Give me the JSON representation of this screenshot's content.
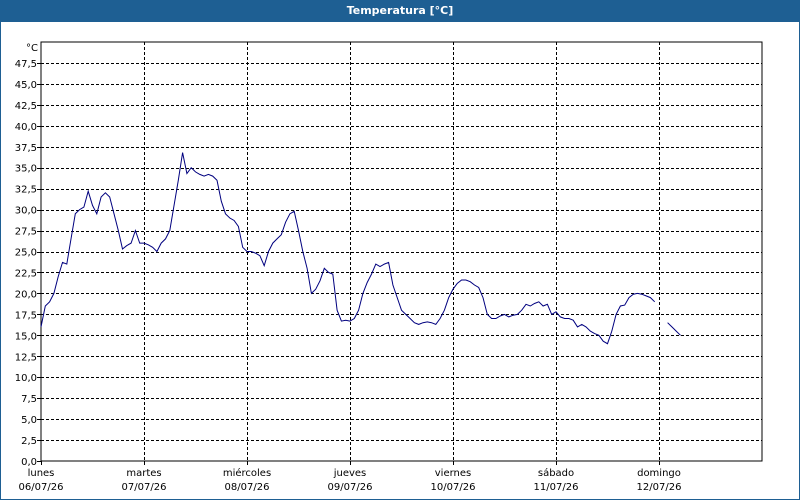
{
  "window": {
    "title": "Temperatura [°C]"
  },
  "chart_data": {
    "type": "line",
    "title": "Temperatura [°C]",
    "ylabel": "°C",
    "ylim": [
      0,
      50
    ],
    "y_ticks": [
      "0,0",
      "2,5",
      "5,0",
      "7,5",
      "10,0",
      "12,5",
      "15,0",
      "17,5",
      "20,0",
      "22,5",
      "25,0",
      "27,5",
      "30,0",
      "32,5",
      "35,0",
      "37,5",
      "40,0",
      "42,5",
      "45,0",
      "47,5"
    ],
    "x_range_hours": [
      0,
      168
    ],
    "x_days": [
      {
        "day": "lunes",
        "date": "06/07/26"
      },
      {
        "day": "martes",
        "date": "07/07/26"
      },
      {
        "day": "miércoles",
        "date": "08/07/26"
      },
      {
        "day": "jueves",
        "date": "09/07/26"
      },
      {
        "day": "viernes",
        "date": "10/07/26"
      },
      {
        "day": "sábado",
        "date": "11/07/26"
      },
      {
        "day": "domingo",
        "date": "12/07/26"
      }
    ],
    "grid": true,
    "series": [
      {
        "color": "#00007f",
        "segments": [
          [
            [
              0,
              16.0
            ],
            [
              1,
              18.5
            ],
            [
              2,
              19
            ],
            [
              3,
              20
            ],
            [
              4,
              22
            ],
            [
              5,
              23.7
            ],
            [
              6,
              23.5
            ],
            [
              7,
              26.5
            ],
            [
              8,
              29.5
            ],
            [
              9,
              30.0
            ],
            [
              10,
              30.3
            ],
            [
              11,
              32.2
            ],
            [
              12,
              30.5
            ],
            [
              13,
              29.5
            ],
            [
              14,
              31.5
            ],
            [
              15,
              32.0
            ],
            [
              16,
              31.5
            ],
            [
              17,
              29.5
            ],
            [
              18,
              27.5
            ],
            [
              19,
              25.3
            ],
            [
              20,
              25.7
            ],
            [
              21,
              26.0
            ],
            [
              22,
              27.5
            ],
            [
              23,
              26.0
            ],
            [
              24,
              26.0
            ],
            [
              25,
              25.8
            ],
            [
              26,
              25.5
            ],
            [
              27,
              25.0
            ],
            [
              28,
              26.0
            ],
            [
              29,
              26.5
            ],
            [
              30,
              27.5
            ],
            [
              32,
              33.5
            ],
            [
              33,
              36.8
            ],
            [
              34,
              34.3
            ],
            [
              35,
              35.0
            ],
            [
              36,
              34.5
            ],
            [
              37,
              34.2
            ],
            [
              38,
              34.0
            ],
            [
              39,
              34.2
            ],
            [
              40,
              34.0
            ],
            [
              41,
              33.5
            ],
            [
              42,
              31.0
            ],
            [
              43,
              29.5
            ],
            [
              44,
              29.0
            ],
            [
              45,
              28.7
            ],
            [
              46,
              28.0
            ],
            [
              47,
              25.5
            ],
            [
              48,
              25.0
            ],
            [
              49,
              25.0
            ],
            [
              50,
              24.8
            ],
            [
              51,
              24.5
            ],
            [
              52,
              23.3
            ],
            [
              53,
              25.0
            ],
            [
              54,
              26.0
            ],
            [
              55,
              26.5
            ],
            [
              56,
              27.0
            ],
            [
              57,
              28.5
            ],
            [
              58,
              29.5
            ],
            [
              59,
              29.8
            ],
            [
              60,
              27.5
            ],
            [
              61,
              25.0
            ],
            [
              62,
              23.0
            ],
            [
              63,
              20.0
            ],
            [
              64,
              20.5
            ],
            [
              65,
              21.5
            ],
            [
              66,
              23.0
            ],
            [
              67,
              22.5
            ],
            [
              68,
              22.3
            ],
            [
              69,
              18.0
            ],
            [
              70,
              16.7
            ],
            [
              71,
              16.8
            ],
            [
              72,
              16.7
            ],
            [
              73,
              17.0
            ],
            [
              74,
              18.0
            ],
            [
              75,
              20.0
            ],
            [
              76,
              21.3
            ],
            [
              77,
              22.3
            ],
            [
              78,
              23.5
            ],
            [
              79,
              23.2
            ],
            [
              80,
              23.5
            ],
            [
              81,
              23.7
            ],
            [
              82,
              21.0
            ],
            [
              83,
              19.5
            ],
            [
              84,
              18.0
            ],
            [
              85,
              17.5
            ],
            [
              86,
              17.0
            ],
            [
              87,
              16.5
            ],
            [
              88,
              16.3
            ],
            [
              89,
              16.5
            ],
            [
              90,
              16.6
            ],
            [
              91,
              16.5
            ],
            [
              92,
              16.3
            ],
            [
              93,
              17.0
            ],
            [
              94,
              18.0
            ],
            [
              95,
              19.5
            ],
            [
              96,
              20.5
            ],
            [
              97,
              21.2
            ],
            [
              98,
              21.6
            ],
            [
              99,
              21.6
            ],
            [
              100,
              21.4
            ],
            [
              101,
              21.0
            ],
            [
              102,
              20.7
            ],
            [
              103,
              19.5
            ],
            [
              104,
              17.5
            ],
            [
              105,
              17.0
            ],
            [
              106,
              17.0
            ],
            [
              107,
              17.3
            ],
            [
              108,
              17.5
            ],
            [
              109,
              17.2
            ],
            [
              110,
              17.4
            ],
            [
              111,
              17.5
            ],
            [
              112,
              18.0
            ],
            [
              113,
              18.7
            ],
            [
              114,
              18.5
            ],
            [
              115,
              18.8
            ],
            [
              116,
              19.0
            ],
            [
              117,
              18.5
            ],
            [
              118,
              18.7
            ],
            [
              119,
              17.5
            ],
            [
              120,
              17.8
            ],
            [
              121,
              17.2
            ],
            [
              122,
              17.0
            ],
            [
              123,
              17.0
            ],
            [
              124,
              16.8
            ],
            [
              125,
              16.0
            ],
            [
              126,
              16.3
            ],
            [
              127,
              16.0
            ],
            [
              128,
              15.5
            ],
            [
              129,
              15.2
            ],
            [
              130,
              15.0
            ],
            [
              131,
              14.3
            ],
            [
              132,
              14.0
            ],
            [
              133,
              15.5
            ],
            [
              134,
              17.5
            ],
            [
              135,
              18.5
            ],
            [
              136,
              18.6
            ],
            [
              137,
              19.5
            ],
            [
              138,
              19.9
            ],
            [
              139,
              20.0
            ],
            [
              140,
              19.9
            ],
            [
              141,
              19.7
            ],
            [
              142,
              19.5
            ],
            [
              143,
              19.0
            ]
          ],
          [
            [
              146,
              16.5
            ],
            [
              147,
              16.0
            ],
            [
              148,
              15.5
            ],
            [
              149,
              15.0
            ]
          ]
        ]
      }
    ]
  }
}
